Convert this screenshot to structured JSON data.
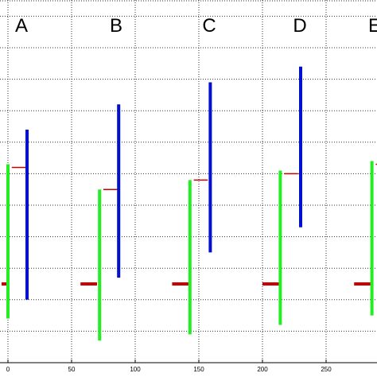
{
  "chart_data": {
    "type": "bar",
    "title": "",
    "xlabel": "",
    "ylabel": "",
    "grid": true,
    "xlim": [
      -5,
      290
    ],
    "ylim": [
      0,
      12
    ],
    "x_ticks": [
      "0",
      "50",
      "100",
      "150",
      "200",
      "250"
    ],
    "x_tick_values": [
      0,
      50,
      100,
      150,
      200,
      250
    ],
    "panels": [
      {
        "label": "A",
        "green": {
          "x": 0,
          "low": 1.4,
          "high": 6.3
        },
        "red_tick": {
          "x0": 3,
          "x1": 14,
          "value": 6.2
        },
        "blue": {
          "x": 15,
          "low": 2.0,
          "high": 7.4
        },
        "red_baseline": {
          "x0": -5,
          "x1": -1,
          "value": 2.5
        }
      },
      {
        "label": "B",
        "green": {
          "x": 72,
          "low": 0.7,
          "high": 5.5
        },
        "red_tick": {
          "x0": 75,
          "x1": 86,
          "value": 5.5
        },
        "blue": {
          "x": 87,
          "low": 2.7,
          "high": 8.2
        },
        "red_baseline": {
          "x0": 57,
          "x1": 70,
          "value": 2.5
        }
      },
      {
        "label": "C",
        "green": {
          "x": 143,
          "low": 0.9,
          "high": 5.8
        },
        "red_tick": {
          "x0": 146,
          "x1": 157,
          "value": 5.8
        },
        "blue": {
          "x": 159,
          "low": 3.5,
          "high": 8.9
        },
        "red_baseline": {
          "x0": 129,
          "x1": 142,
          "value": 2.5
        }
      },
      {
        "label": "D",
        "green": {
          "x": 214,
          "low": 1.2,
          "high": 6.1
        },
        "red_tick": {
          "x0": 217,
          "x1": 228,
          "value": 6.0
        },
        "blue": {
          "x": 230,
          "low": 4.3,
          "high": 9.4
        },
        "red_baseline": {
          "x0": 200,
          "x1": 213,
          "value": 2.5
        }
      },
      {
        "label": "E",
        "green": {
          "x": 286,
          "low": 1.5,
          "high": 6.4
        },
        "red_tick": {
          "x0": 289,
          "x1": 291,
          "value": 6.3
        },
        "blue": null,
        "red_baseline": {
          "x0": 272,
          "x1": 285,
          "value": 2.5
        }
      }
    ]
  },
  "colors": {
    "green": "#22ee22",
    "blue": "#0010cc",
    "red": "#cc0000",
    "grid": "#333333",
    "axis": "#000000"
  }
}
